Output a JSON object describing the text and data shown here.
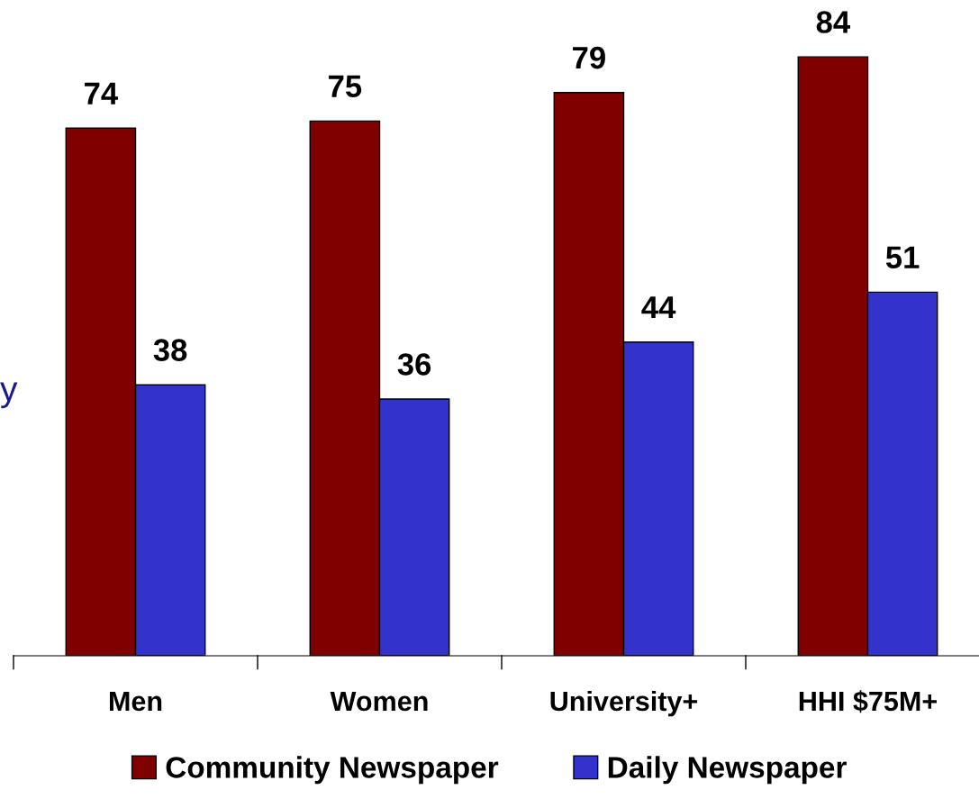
{
  "chart_data": {
    "type": "bar",
    "categories": [
      "Men",
      "Women",
      "University+",
      "HHI $75M+"
    ],
    "series": [
      {
        "name": "Community Newspaper",
        "color": "#800000",
        "values": [
          74,
          75,
          79,
          84
        ]
      },
      {
        "name": "Daily Newspaper",
        "color": "#3333cc",
        "values": [
          38,
          36,
          44,
          51
        ]
      }
    ],
    "data_labels": true,
    "legend": "bottom",
    "annotations": [
      "y"
    ]
  }
}
